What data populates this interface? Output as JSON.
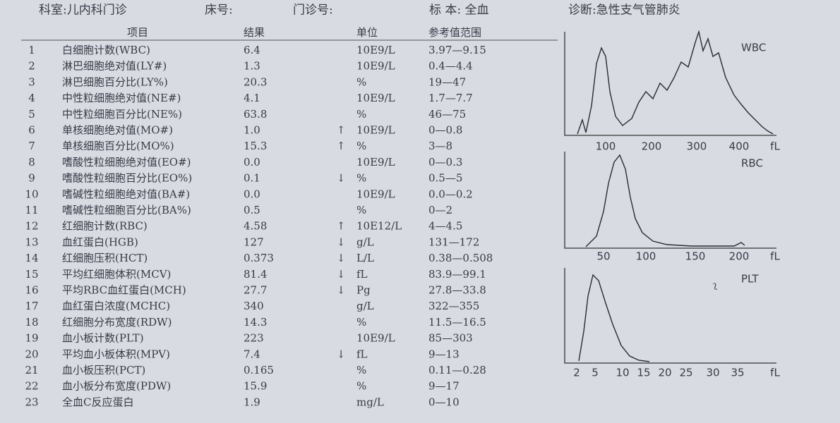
{
  "header": {
    "department": "科室:儿内科门诊",
    "bed": "床号:",
    "clinic_no": "门诊号:",
    "specimen": "标 本: 全血",
    "diagnosis": "诊断:急性支气管肺炎"
  },
  "table": {
    "columns": [
      "项目",
      "结果",
      "单位",
      "参考值范围"
    ],
    "rows": [
      {
        "no": "1",
        "name": "白细胞计数(WBC)",
        "result": "6.4",
        "unit": "10E9/L",
        "range": "3.97—9.15"
      },
      {
        "no": "2",
        "name": "淋巴细胞绝对值(LY#)",
        "result": "1.3",
        "unit": "10E9/L",
        "range": "0.4—4.4"
      },
      {
        "no": "3",
        "name": "淋巴细胞百分比(LY%)",
        "result": "20.3",
        "unit": "%",
        "range": "19—47"
      },
      {
        "no": "4",
        "name": "中性粒细胞绝对值(NE#)",
        "result": "4.1",
        "unit": "10E9/L",
        "range": "1.7—7.7"
      },
      {
        "no": "5",
        "name": "中性粒细胞百分比(NE%)",
        "result": "63.8",
        "unit": "%",
        "range": "46—75"
      },
      {
        "no": "6",
        "name": "单核细胞绝对值(MO#)",
        "result": "1.0",
        "flag": "↑",
        "unit": "10E9/L",
        "range": "0—0.8"
      },
      {
        "no": "7",
        "name": "单核细胞百分比(MO%)",
        "result": "15.3",
        "flag": "↑",
        "unit": "%",
        "range": "3—8"
      },
      {
        "no": "8",
        "name": "嗜酸性粒细胞绝对值(EO#)",
        "result": "0.0",
        "unit": "10E9/L",
        "range": "0—0.3"
      },
      {
        "no": "9",
        "name": "嗜酸性粒细胞百分比(EO%)",
        "result": "0.1",
        "flag": "↓",
        "unit": "%",
        "range": "0.5—5"
      },
      {
        "no": "10",
        "name": "嗜碱性粒细胞绝对值(BA#)",
        "result": "0.0",
        "unit": "10E9/L",
        "range": "0.0—0.2"
      },
      {
        "no": "11",
        "name": "嗜碱性粒细胞百分比(BA%)",
        "result": "0.5",
        "unit": "%",
        "range": "0—2"
      },
      {
        "no": "12",
        "name": "红细胞计数(RBC)",
        "result": "4.58",
        "flag": "↑",
        "unit": "10E12/L",
        "range": "4—4.5"
      },
      {
        "no": "13",
        "name": "血红蛋白(HGB)",
        "result": "127",
        "flag": "↓",
        "unit": "g/L",
        "range": "131—172"
      },
      {
        "no": "14",
        "name": "红细胞压积(HCT)",
        "result": "0.373",
        "flag": "↓",
        "unit": "L/L",
        "range": "0.38—0.508"
      },
      {
        "no": "15",
        "name": "平均红细胞体积(MCV)",
        "result": "81.4",
        "flag": "↓",
        "unit": "fL",
        "range": "83.9—99.1"
      },
      {
        "no": "16",
        "name": "平均RBC血红蛋白(MCH)",
        "result": "27.7",
        "flag": "↓",
        "unit": "Pg",
        "range": "27.8—33.8"
      },
      {
        "no": "17",
        "name": "血红蛋白浓度(MCHC)",
        "result": "340",
        "unit": "g/L",
        "range": "322—355"
      },
      {
        "no": "18",
        "name": "红细胞分布宽度(RDW)",
        "result": "14.3",
        "unit": "%",
        "range": "11.5—16.5"
      },
      {
        "no": "19",
        "name": "血小板计数(PLT)",
        "result": "223",
        "unit": "10E9/L",
        "range": "85—303"
      },
      {
        "no": "20",
        "name": "平均血小板体积(MPV)",
        "result": "7.4",
        "flag": "↓",
        "unit": "fL",
        "range": "9—13"
      },
      {
        "no": "21",
        "name": "血小板压积(PCT)",
        "result": "0.165",
        "unit": "%",
        "range": "0.11—0.28"
      },
      {
        "no": "22",
        "name": "血小板分布宽度(PDW)",
        "result": "15.9",
        "unit": "%",
        "range": "9—17"
      },
      {
        "no": "23",
        "name": "全血C反应蛋白",
        "result": "1.9",
        "unit": "mg/L",
        "range": "0—10"
      }
    ]
  },
  "histograms": [
    {
      "label": "WBC",
      "ticks": [
        "100",
        "200",
        "300",
        "400"
      ],
      "unit": "fL"
    },
    {
      "label": "RBC",
      "ticks": [
        "50",
        "100",
        "150",
        "200"
      ],
      "unit": "fL"
    },
    {
      "label": "PLT",
      "ticks": [
        "2",
        "5",
        "10",
        "15",
        "20",
        "25",
        "30",
        "35"
      ],
      "unit": "fL"
    }
  ]
}
